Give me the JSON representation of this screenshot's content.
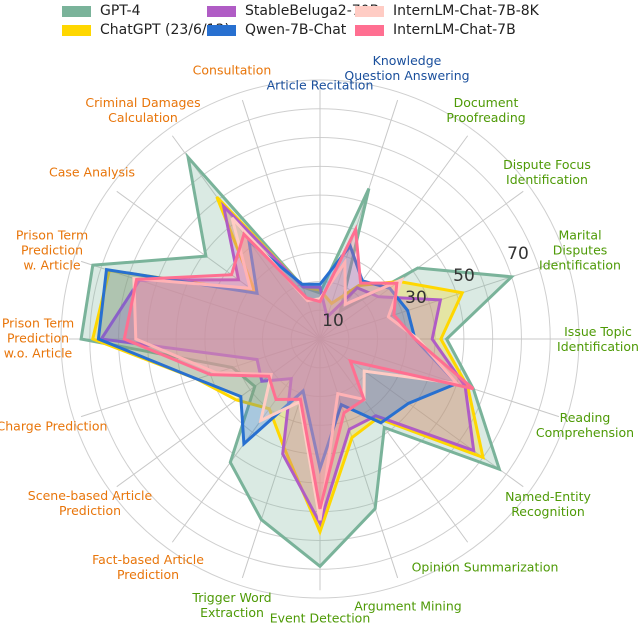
{
  "chart_data": {
    "type": "radar",
    "title": "",
    "rlim": [
      0,
      90
    ],
    "radial_ticks": [
      10,
      30,
      50,
      70
    ],
    "grid": true,
    "legend_position": "top",
    "axes": [
      {
        "label": "Article Recitation",
        "group_color": "#1a4f9c"
      },
      {
        "label": "Knowledge\nQuestion Answering",
        "group_color": "#1a4f9c"
      },
      {
        "label": "Document\nProofreading",
        "group_color": "#4e9a06"
      },
      {
        "label": "Dispute Focus\nIdentification",
        "group_color": "#4e9a06"
      },
      {
        "label": "Marital Disputes\nIdentification",
        "group_color": "#4e9a06"
      },
      {
        "label": "Issue Topic\nIdentification",
        "group_color": "#4e9a06"
      },
      {
        "label": "Reading\nComprehension",
        "group_color": "#4e9a06"
      },
      {
        "label": "Named-Entity Recognition",
        "group_color": "#4e9a06"
      },
      {
        "label": "Opinion Summarization",
        "group_color": "#4e9a06"
      },
      {
        "label": "Argument Mining",
        "group_color": "#4e9a06"
      },
      {
        "label": "Event Detection",
        "group_color": "#4e9a06"
      },
      {
        "label": "Trigger Word\nExtraction",
        "group_color": "#4e9a06"
      },
      {
        "label": "Fact-based Article\nPrediction",
        "group_color": "#e8750a"
      },
      {
        "label": "Scene-based Article\nPrediction",
        "group_color": "#e8750a"
      },
      {
        "label": "Charge Prediction",
        "group_color": "#e8750a"
      },
      {
        "label": "Prison Term\nPrediction\nw.o. Article",
        "group_color": "#e8750a"
      },
      {
        "label": "Prison Term\nPrediction\nw. Article",
        "group_color": "#e8750a"
      },
      {
        "label": "Case Analysis",
        "group_color": "#e8750a"
      },
      {
        "label": "Criminal Damages\nCalculation",
        "group_color": "#e8750a"
      },
      {
        "label": "Consultation",
        "group_color": "#e8750a"
      }
    ],
    "series": [
      {
        "name": "GPT-4",
        "color": "#7ab39a",
        "values": [
          16,
          55,
          12,
          42,
          70,
          44,
          56,
          77,
          38,
          62,
          79,
          66,
          53,
          28,
          32,
          83,
          83,
          49,
          78,
          19
        ]
      },
      {
        "name": "ChatGPT (23/6/13)",
        "color": "#ffd700",
        "values": [
          17,
          13,
          23,
          34,
          52,
          42,
          54,
          70,
          34,
          36,
          67,
          40,
          30,
          36,
          45,
          79,
          77,
          28,
          61,
          19
        ]
      },
      {
        "name": "StableBeluga2-70B",
        "color": "#b05cc5",
        "values": [
          18,
          8,
          22,
          25,
          44,
          39,
          53,
          66,
          33,
          33,
          64,
          42,
          17,
          25,
          23,
          76,
          66,
          35,
          57,
          19
        ]
      },
      {
        "name": "Qwen-7B-Chat",
        "color": "#2870d0",
        "values": [
          19,
          34,
          25,
          30,
          32,
          33,
          50,
          38,
          36,
          24,
          45,
          19,
          45,
          34,
          45,
          77,
          78,
          27,
          42,
          20
        ]
      },
      {
        "name": "InternLM-Chat-7B-8K",
        "color": "#ffccc4",
        "values": [
          14,
          28,
          15,
          35,
          25,
          34,
          50,
          19,
          26,
          20,
          63,
          23,
          35,
          21,
          38,
          64,
          68,
          30,
          52,
          14
        ]
      },
      {
        "name": "InternLM-Chat-7B",
        "color": "#ff6f91",
        "values": [
          13,
          40,
          24,
          33,
          27,
          33,
          56,
          13,
          26,
          27,
          59,
          22,
          26,
          22,
          40,
          68,
          67,
          38,
          45,
          15
        ]
      }
    ]
  }
}
